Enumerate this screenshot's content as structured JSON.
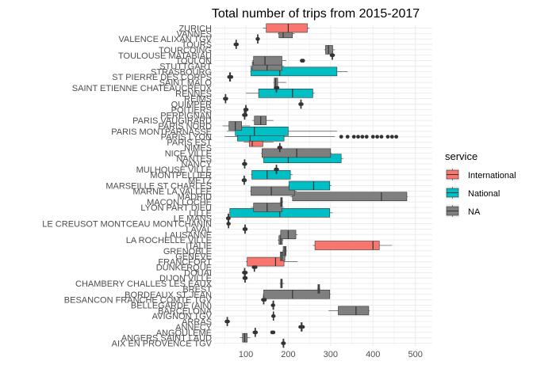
{
  "chart_data": {
    "type": "boxplot",
    "title": "Total number of trips from 2015-2017",
    "xlabel": "",
    "ylabel": "",
    "x_ticks": [
      100,
      200,
      300,
      400,
      500
    ],
    "xlim": [
      25,
      540
    ],
    "grid": true,
    "legend": {
      "title": "service",
      "position": "right",
      "items": [
        {
          "name": "International",
          "color": "#F8766D"
        },
        {
          "name": "National",
          "color": "#00BFC4"
        },
        {
          "name": "NA",
          "color": "#7F7F7F"
        }
      ]
    },
    "categories": [
      "AIX EN PROVENCE TGV",
      "ANGERS SAINT LAUD",
      "ANGOULEME",
      "ANNECY",
      "ARRAS",
      "AVIGNON TGV",
      "BARCELONA",
      "BELLEGARDE (AIN)",
      "BESANCON FRANCHE COMTE TGV",
      "BORDEAUX ST JEAN",
      "BREST",
      "CHAMBERY CHALLES LES EAUX",
      "DIJON VILLE",
      "DOUAI",
      "DUNKERQUE",
      "FRANCFORT",
      "GENEVE",
      "GRENOBLE",
      "ITALIE",
      "LA ROCHELLE VILLE",
      "LAUSANNE",
      "LAVAL",
      "LE CREUSOT MONTCEAU MONTCHANIN",
      "LE MANS",
      "LILLE",
      "LYON PART DIEU",
      "MACON LOCHE",
      "MADRID",
      "MARNE LA VALLEE",
      "MARSEILLE ST CHARLES",
      "METZ",
      "MONTPELLIER",
      "MULHOUSE VILLE",
      "NANCY",
      "NANTES",
      "NICE VILLE",
      "NIMES",
      "PARIS EST",
      "PARIS LYON",
      "PARIS MONTPARNASSE",
      "PARIS NORD",
      "PARIS VAUGIRARD",
      "PERPIGNAN",
      "POITIERS",
      "QUIMPER",
      "REIMS",
      "RENNES",
      "SAINT ETIENNE CHATEAUCREUX",
      "SAINT MALO",
      "ST PIERRE DES CORPS",
      "STRASBOURG",
      "STUTTGART",
      "TOULON",
      "TOULOUSE MATABIAU",
      "TOURCOING",
      "TOURS",
      "VALENCE ALIXAN TGV",
      "VANNES",
      "ZURICH"
    ],
    "boxes": [
      {
        "category": "AIX EN PROVENCE TGV",
        "service": "NA",
        "min": 187,
        "q1": 188,
        "median": 188,
        "q3": 189,
        "max": 190,
        "outliers": []
      },
      {
        "category": "ANGERS SAINT LAUD",
        "service": "NA",
        "min": 86,
        "q1": 92,
        "median": 97,
        "q3": 103,
        "max": 110,
        "outliers": []
      },
      {
        "category": "ANGOULEME",
        "service": "NA",
        "min": 120,
        "q1": 121,
        "median": 122,
        "q3": 123,
        "max": 124,
        "outliers": [
          162,
          165
        ]
      },
      {
        "category": "ANNECY",
        "service": "NA",
        "min": 228,
        "q1": 230,
        "median": 231,
        "q3": 233,
        "max": 235,
        "outliers": []
      },
      {
        "category": "ARRAS",
        "service": "NA",
        "min": 54,
        "q1": 55,
        "median": 56,
        "q3": 57,
        "max": 58,
        "outliers": []
      },
      {
        "category": "AVIGNON TGV",
        "service": "NA",
        "min": 164,
        "q1": 164,
        "median": 165,
        "q3": 165,
        "max": 166,
        "outliers": []
      },
      {
        "category": "BARCELONA",
        "service": "NA",
        "min": 295,
        "q1": 318,
        "median": 360,
        "q3": 390,
        "max": 392,
        "outliers": []
      },
      {
        "category": "BELLEGARDE (AIN)",
        "service": "NA",
        "min": 163,
        "q1": 164,
        "median": 164,
        "q3": 165,
        "max": 165,
        "outliers": []
      },
      {
        "category": "BESANCON FRANCHE COMTE TGV",
        "service": "NA",
        "min": 140,
        "q1": 141,
        "median": 142,
        "q3": 143,
        "max": 145,
        "outliers": []
      },
      {
        "category": "BORDEAUX ST JEAN",
        "service": "NA",
        "min": 140,
        "q1": 142,
        "median": 210,
        "q3": 298,
        "max": 300,
        "outliers": []
      },
      {
        "category": "BREST",
        "service": "NA",
        "min": 268,
        "q1": 270,
        "median": 272,
        "q3": 274,
        "max": 276,
        "outliers": []
      },
      {
        "category": "CHAMBERY CHALLES LES EAUX",
        "service": "NA",
        "min": 180,
        "q1": 182,
        "median": 184,
        "q3": 186,
        "max": 190,
        "outliers": []
      },
      {
        "category": "DIJON VILLE",
        "service": "NA",
        "min": 96,
        "q1": 97,
        "median": 98,
        "q3": 99,
        "max": 100,
        "outliers": []
      },
      {
        "category": "DOUAI",
        "service": "NA",
        "min": 95,
        "q1": 96,
        "median": 97,
        "q3": 98,
        "max": 100,
        "outliers": []
      },
      {
        "category": "DUNKERQUE",
        "service": "NA",
        "min": 118,
        "q1": 119,
        "median": 120,
        "q3": 121,
        "max": 123,
        "outliers": []
      },
      {
        "category": "FRANCFORT",
        "service": "International",
        "min": 100,
        "q1": 103,
        "median": 170,
        "q3": 190,
        "max": 222,
        "outliers": []
      },
      {
        "category": "GENEVE",
        "service": "NA",
        "min": 180,
        "q1": 181,
        "median": 185,
        "q3": 192,
        "max": 195,
        "outliers": []
      },
      {
        "category": "GRENOBLE",
        "service": "NA",
        "min": 186,
        "q1": 188,
        "median": 192,
        "q3": 195,
        "max": 197,
        "outliers": []
      },
      {
        "category": "ITALIE",
        "service": "International",
        "min": 258,
        "q1": 263,
        "median": 400,
        "q3": 415,
        "max": 445,
        "outliers": []
      },
      {
        "category": "LA ROCHELLE VILLE",
        "service": "NA",
        "min": 175,
        "q1": 178,
        "median": 182,
        "q3": 186,
        "max": 188,
        "outliers": []
      },
      {
        "category": "LAUSANNE",
        "service": "NA",
        "min": 180,
        "q1": 182,
        "median": 200,
        "q3": 218,
        "max": 222,
        "outliers": []
      },
      {
        "category": "LAVAL",
        "service": "NA",
        "min": 96,
        "q1": 97,
        "median": 98,
        "q3": 99,
        "max": 100,
        "outliers": []
      },
      {
        "category": "LE CREUSOT MONTCEAU MONTCHANIN",
        "service": "NA",
        "min": 58,
        "q1": 58,
        "median": 59,
        "q3": 59,
        "max": 60,
        "outliers": []
      },
      {
        "category": "LE MANS",
        "service": "NA",
        "min": 57,
        "q1": 58,
        "median": 58,
        "q3": 59,
        "max": 60,
        "outliers": []
      },
      {
        "category": "LILLE",
        "service": "National",
        "min": 60,
        "q1": 62,
        "median": 180,
        "q3": 298,
        "max": 305,
        "outliers": []
      },
      {
        "category": "LYON PART DIEU",
        "service": "NA",
        "min": 112,
        "q1": 118,
        "median": 150,
        "q3": 185,
        "max": 190,
        "outliers": []
      },
      {
        "category": "MACON LOCHE",
        "service": "NA",
        "min": 180,
        "q1": 182,
        "median": 184,
        "q3": 186,
        "max": 188,
        "outliers": []
      },
      {
        "category": "MADRID",
        "service": "NA",
        "min": 205,
        "q1": 210,
        "median": 420,
        "q3": 480,
        "max": 482,
        "outliers": []
      },
      {
        "category": "MARNE LA VALLEE",
        "service": "NA",
        "min": 110,
        "q1": 112,
        "median": 160,
        "q3": 215,
        "max": 220,
        "outliers": []
      },
      {
        "category": "MARSEILLE ST CHARLES",
        "service": "National",
        "min": 200,
        "q1": 202,
        "median": 260,
        "q3": 298,
        "max": 302,
        "outliers": []
      },
      {
        "category": "METZ",
        "service": "NA",
        "min": 94,
        "q1": 95,
        "median": 96,
        "q3": 97,
        "max": 98,
        "outliers": []
      },
      {
        "category": "MONTPELLIER",
        "service": "National",
        "min": 112,
        "q1": 114,
        "median": 150,
        "q3": 205,
        "max": 210,
        "outliers": []
      },
      {
        "category": "MULHOUSE VILLE",
        "service": "NA",
        "min": 170,
        "q1": 171,
        "median": 172,
        "q3": 173,
        "max": 174,
        "outliers": []
      },
      {
        "category": "NANCY",
        "service": "NA",
        "min": 95,
        "q1": 96,
        "median": 97,
        "q3": 98,
        "max": 99,
        "outliers": []
      },
      {
        "category": "NANTES",
        "service": "National",
        "min": 140,
        "q1": 142,
        "median": 200,
        "q3": 325,
        "max": 330,
        "outliers": []
      },
      {
        "category": "NICE VILLE",
        "service": "NA",
        "min": 136,
        "q1": 138,
        "median": 220,
        "q3": 300,
        "max": 302,
        "outliers": []
      },
      {
        "category": "NIMES",
        "service": "NA",
        "min": 178,
        "q1": 179,
        "median": 180,
        "q3": 181,
        "max": 182,
        "outliers": []
      },
      {
        "category": "PARIS EST",
        "service": "International",
        "min": 95,
        "q1": 108,
        "median": 115,
        "q3": 140,
        "max": 165,
        "outliers": []
      },
      {
        "category": "PARIS LYON",
        "service": "National",
        "min": 50,
        "q1": 80,
        "median": 110,
        "q3": 190,
        "max": 310,
        "outliers": [
          325,
          340,
          355,
          365,
          375,
          385,
          400,
          410,
          420,
          435,
          445,
          455
        ]
      },
      {
        "category": "PARIS MONTPARNASSE",
        "service": "National",
        "min": 55,
        "q1": 75,
        "median": 120,
        "q3": 200,
        "max": 315,
        "outliers": []
      },
      {
        "category": "PARIS NORD",
        "service": "NA",
        "min": 45,
        "q1": 60,
        "median": 75,
        "q3": 90,
        "max": 110,
        "outliers": []
      },
      {
        "category": "PARIS VAUGIRARD",
        "service": "NA",
        "min": 115,
        "q1": 120,
        "median": 135,
        "q3": 148,
        "max": 165,
        "outliers": []
      },
      {
        "category": "PERPIGNAN",
        "service": "NA",
        "min": 95,
        "q1": 96,
        "median": 97,
        "q3": 98,
        "max": 100,
        "outliers": []
      },
      {
        "category": "POITIERS",
        "service": "NA",
        "min": 98,
        "q1": 99,
        "median": 100,
        "q3": 101,
        "max": 102,
        "outliers": []
      },
      {
        "category": "QUIMPER",
        "service": "NA",
        "min": 228,
        "q1": 229,
        "median": 230,
        "q3": 231,
        "max": 232,
        "outliers": []
      },
      {
        "category": "REIMS",
        "service": "NA",
        "min": 50,
        "q1": 51,
        "median": 52,
        "q3": 53,
        "max": 54,
        "outliers": []
      },
      {
        "category": "RENNES",
        "service": "National",
        "min": 100,
        "q1": 130,
        "median": 210,
        "q3": 258,
        "max": 262,
        "outliers": []
      },
      {
        "category": "SAINT ETIENNE CHATEAUCREUX",
        "service": "NA",
        "min": 170,
        "q1": 171,
        "median": 172,
        "q3": 173,
        "max": 175,
        "outliers": []
      },
      {
        "category": "SAINT MALO",
        "service": "NA",
        "min": 165,
        "q1": 167,
        "median": 170,
        "q3": 175,
        "max": 195,
        "outliers": []
      },
      {
        "category": "ST PIERRE DES CORPS",
        "service": "NA",
        "min": 60,
        "q1": 61,
        "median": 62,
        "q3": 64,
        "max": 66,
        "outliers": []
      },
      {
        "category": "STRASBOURG",
        "service": "National",
        "min": 110,
        "q1": 112,
        "median": 180,
        "q3": 315,
        "max": 340,
        "outliers": []
      },
      {
        "category": "STUTTGART",
        "service": "NA",
        "min": 110,
        "q1": 115,
        "median": 150,
        "q3": 185,
        "max": 190,
        "outliers": []
      },
      {
        "category": "TOULON",
        "service": "NA",
        "min": 115,
        "q1": 118,
        "median": 145,
        "q3": 185,
        "max": 195,
        "outliers": [
          232,
          235
        ]
      },
      {
        "category": "TOULOUSE MATABIAU",
        "service": "NA",
        "min": 302,
        "q1": 303,
        "median": 304,
        "q3": 305,
        "max": 306,
        "outliers": []
      },
      {
        "category": "TOURCOING",
        "service": "NA",
        "min": 285,
        "q1": 288,
        "median": 295,
        "q3": 305,
        "max": 310,
        "outliers": []
      },
      {
        "category": "TOURS",
        "service": "NA",
        "min": 75,
        "q1": 76,
        "median": 77,
        "q3": 78,
        "max": 79,
        "outliers": []
      },
      {
        "category": "VALENCE ALIXAN TGV",
        "service": "NA",
        "min": 127,
        "q1": 127,
        "median": 128,
        "q3": 128,
        "max": 129,
        "outliers": []
      },
      {
        "category": "VANNES",
        "service": "NA",
        "min": 175,
        "q1": 178,
        "median": 188,
        "q3": 210,
        "max": 215,
        "outliers": []
      },
      {
        "category": "ZURICH",
        "service": "International",
        "min": 140,
        "q1": 148,
        "median": 200,
        "q3": 245,
        "max": 250,
        "outliers": []
      }
    ]
  }
}
